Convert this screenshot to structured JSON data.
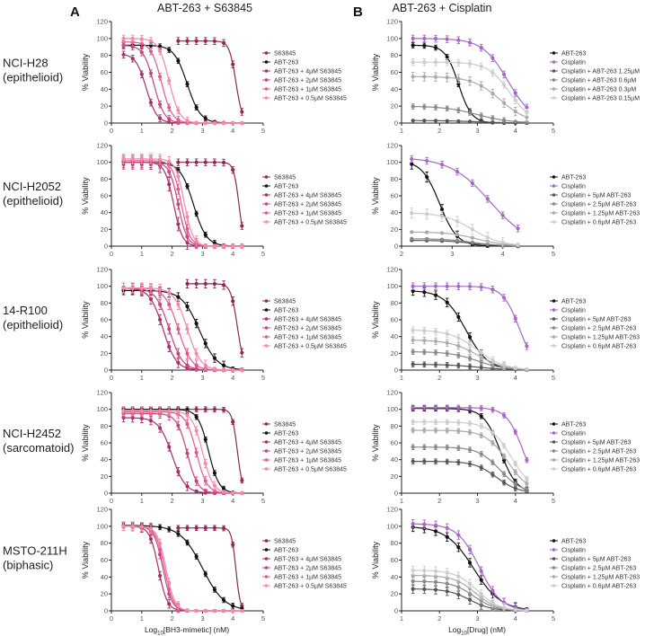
{
  "colors": {
    "S63845": "#8b2a55",
    "ABT-263": "#111111",
    "4uM": "#a3306a",
    "2uM": "#c44580",
    "1uM": "#e05a90",
    "05uM": "#f28aa8",
    "Cisplatin": "#a668c4",
    "g1": "#555555",
    "g2": "#888888",
    "g3": "#aaaaaa",
    "g4": "#cccccc"
  },
  "headers": {
    "panel_a": "A",
    "panel_b": "B",
    "title_a": "ABT-263 + S63845",
    "title_b": "ABT-263 + Cisplatin"
  },
  "rows": [
    {
      "name": "NCI-H28",
      "type": "(epithelioid)"
    },
    {
      "name": "NCI-H2052",
      "type": "(epithelioid)"
    },
    {
      "name": "14-R100",
      "type": "(epithelioid)"
    },
    {
      "name": "NCI-H2452",
      "type": "(sarcomatoid)"
    },
    {
      "name": "MSTO-211H",
      "type": "(biphasic)"
    }
  ],
  "xlabel_a": {
    "prefix": "Log",
    "sub": "10",
    "suffix": "[BH3-mimetic] (nM)"
  },
  "xlabel_b": {
    "prefix": "Log",
    "sub": "10",
    "suffix": "[Drug] (nM)"
  },
  "chart_data": [
    {
      "type": "line",
      "panel": "A",
      "row": 0,
      "ylabel": "% Viability",
      "xlim": [
        0,
        5
      ],
      "ylim": [
        0,
        120
      ],
      "xticks": [
        0,
        1,
        2,
        3,
        4,
        5
      ],
      "yticks": [
        0,
        20,
        40,
        60,
        80,
        100,
        120
      ],
      "legend": "right",
      "series": [
        {
          "name": "S63845",
          "color": "S63845",
          "top": 97,
          "log_ic50": 4.1,
          "hill": 4,
          "xmin": 2.2,
          "xmax": 4.3,
          "err": 4
        },
        {
          "name": "ABT-263",
          "color": "ABT-263",
          "top": 92,
          "log_ic50": 2.5,
          "hill": 2,
          "xmin": 0.4,
          "xmax": 4.3,
          "err": 3
        },
        {
          "name": "ABT-263 + 4µM S63845",
          "color": "4uM",
          "top": 82,
          "log_ic50": 1.15,
          "hill": 2.5,
          "xmin": 0.4,
          "xmax": 4.3,
          "err": 4
        },
        {
          "name": "ABT-263 + 2µM S63845",
          "color": "2uM",
          "top": 92,
          "log_ic50": 1.4,
          "hill": 2.5,
          "xmin": 0.4,
          "xmax": 4.3,
          "err": 4
        },
        {
          "name": "ABT-263 + 1µM S63845",
          "color": "1uM",
          "top": 96,
          "log_ic50": 1.65,
          "hill": 2.5,
          "xmin": 0.4,
          "xmax": 4.3,
          "err": 4
        },
        {
          "name": "ABT-263 + 0.5µM S63845",
          "color": "05uM",
          "top": 100,
          "log_ic50": 1.9,
          "hill": 2.5,
          "xmin": 0.4,
          "xmax": 4.3,
          "err": 4
        }
      ]
    },
    {
      "type": "line",
      "panel": "B",
      "row": 0,
      "ylabel": "% Viability",
      "xlim": [
        1,
        5
      ],
      "ylim": [
        0,
        120
      ],
      "xticks": [
        1,
        2,
        3,
        4,
        5
      ],
      "yticks": [
        0,
        20,
        40,
        60,
        80,
        100,
        120
      ],
      "legend": "right",
      "series": [
        {
          "name": "ABT-263",
          "color": "ABT-263",
          "top": 92,
          "log_ic50": 2.5,
          "hill": 2.5,
          "xmin": 1.3,
          "xmax": 4.3,
          "err": 3
        },
        {
          "name": "Cisplatin",
          "color": "Cisplatin",
          "top": 100,
          "log_ic50": 3.8,
          "hill": 1.3,
          "xmin": 1.3,
          "xmax": 4.3,
          "err": 4
        },
        {
          "name": "Cisplatin + ABT-263 1.25µM",
          "color": "g1",
          "top": 3,
          "log_ic50": 3,
          "hill": 1,
          "xmin": 1.3,
          "xmax": 4.3,
          "err": 1
        },
        {
          "name": "Cisplatin + ABT-263 0.6µM",
          "color": "g2",
          "top": 20,
          "log_ic50": 3,
          "hill": 1,
          "xmin": 1.3,
          "xmax": 4.3,
          "err": 3
        },
        {
          "name": "Cisplatin + ABT-263 0.3µM",
          "color": "g3",
          "top": 55,
          "log_ic50": 3.6,
          "hill": 1.2,
          "xmin": 1.3,
          "xmax": 4.3,
          "err": 5
        },
        {
          "name": "Cisplatin + ABT-263 0.15µM",
          "color": "g4",
          "top": 72,
          "log_ic50": 3.85,
          "hill": 1.5,
          "xmin": 1.3,
          "xmax": 4.3,
          "err": 4
        }
      ]
    },
    {
      "type": "line",
      "panel": "A",
      "row": 1,
      "ylabel": "% Viability",
      "xlim": [
        0,
        5
      ],
      "ylim": [
        0,
        120
      ],
      "xticks": [
        0,
        1,
        2,
        3,
        4,
        5
      ],
      "yticks": [
        0,
        20,
        40,
        60,
        80,
        100,
        120
      ],
      "legend": "right",
      "series": [
        {
          "name": "S63845",
          "color": "S63845",
          "top": 100,
          "log_ic50": 4.2,
          "hill": 5,
          "xmin": 2.2,
          "xmax": 4.3,
          "err": 4
        },
        {
          "name": "ABT-263",
          "color": "ABT-263",
          "top": 100,
          "log_ic50": 2.7,
          "hill": 2,
          "xmin": 0.4,
          "xmax": 4.3,
          "err": 3
        },
        {
          "name": "ABT-263 + 4µM S63845",
          "color": "4uM",
          "top": 100,
          "log_ic50": 2.05,
          "hill": 3,
          "xmin": 0.4,
          "xmax": 4.3,
          "err": 8
        },
        {
          "name": "ABT-263 + 2µM S63845",
          "color": "2uM",
          "top": 100,
          "log_ic50": 2.2,
          "hill": 3,
          "xmin": 0.4,
          "xmax": 4.3,
          "err": 6
        },
        {
          "name": "ABT-263 + 1µM S63845",
          "color": "1uM",
          "top": 102,
          "log_ic50": 2.3,
          "hill": 3,
          "xmin": 0.4,
          "xmax": 4.3,
          "err": 6
        },
        {
          "name": "ABT-263 + 0.5µM S63845",
          "color": "05uM",
          "top": 104,
          "log_ic50": 2.4,
          "hill": 3,
          "xmin": 0.4,
          "xmax": 4.3,
          "err": 6
        }
      ]
    },
    {
      "type": "line",
      "panel": "B",
      "row": 1,
      "ylabel": "% Viability",
      "xlim": [
        2,
        5
      ],
      "ylim": [
        0,
        120
      ],
      "xticks": [
        2,
        3,
        4,
        5
      ],
      "yticks": [
        0,
        20,
        40,
        60,
        80,
        100,
        120
      ],
      "legend": "right",
      "series": [
        {
          "name": "ABT-263",
          "color": "ABT-263",
          "top": 102,
          "log_ic50": 2.75,
          "hill": 2.5,
          "xmin": 2.2,
          "xmax": 4.3,
          "err": 6
        },
        {
          "name": "Cisplatin",
          "color": "Cisplatin",
          "top": 106,
          "log_ic50": 3.75,
          "hill": 1.1,
          "xmin": 2.2,
          "xmax": 4.3,
          "err": 4
        },
        {
          "name": "Cisplatin + 5µM ABT-263",
          "color": "g1",
          "top": 7,
          "log_ic50": 3.4,
          "hill": 1.5,
          "xmin": 2.2,
          "xmax": 4.3,
          "err": 1
        },
        {
          "name": "Cisplatin + 2.5µM ABT-263",
          "color": "g2",
          "top": 9,
          "log_ic50": 3.4,
          "hill": 1.5,
          "xmin": 2.2,
          "xmax": 4.3,
          "err": 1
        },
        {
          "name": "Cisplatin + 1.25µM ABT-263",
          "color": "g3",
          "top": 17,
          "log_ic50": 3.5,
          "hill": 1.5,
          "xmin": 2.2,
          "xmax": 4.3,
          "err": 1
        },
        {
          "name": "Cisplatin + 0.6µM ABT-263",
          "color": "g4",
          "top": 40,
          "log_ic50": 3.4,
          "hill": 1.5,
          "xmin": 2.2,
          "xmax": 4.3,
          "err": 6
        }
      ]
    },
    {
      "type": "line",
      "panel": "A",
      "row": 2,
      "ylabel": "% Viability",
      "xlim": [
        0,
        5
      ],
      "ylim": [
        0,
        120
      ],
      "xticks": [
        0,
        1,
        2,
        3,
        4,
        5
      ],
      "yticks": [
        0,
        20,
        40,
        60,
        80,
        100,
        120
      ],
      "legend": "right",
      "series": [
        {
          "name": "S63845",
          "color": "S63845",
          "top": 103,
          "log_ic50": 4.15,
          "hill": 4,
          "xmin": 2.5,
          "xmax": 4.3,
          "err": 5
        },
        {
          "name": "ABT-263",
          "color": "ABT-263",
          "top": 95,
          "log_ic50": 2.9,
          "hill": 1.5,
          "xmin": 0.4,
          "xmax": 4.3,
          "err": 5
        },
        {
          "name": "ABT-263 + 4µM S63845",
          "color": "4uM",
          "top": 98,
          "log_ic50": 1.7,
          "hill": 2,
          "xmin": 0.4,
          "xmax": 4.3,
          "err": 6
        },
        {
          "name": "ABT-263 + 2µM S63845",
          "color": "2uM",
          "top": 98,
          "log_ic50": 1.9,
          "hill": 2,
          "xmin": 0.4,
          "xmax": 4.3,
          "err": 6
        },
        {
          "name": "ABT-263 + 1µM S63845",
          "color": "1uM",
          "top": 98,
          "log_ic50": 2.2,
          "hill": 2,
          "xmin": 0.4,
          "xmax": 4.3,
          "err": 6
        },
        {
          "name": "ABT-263 + 0.5µM S63845",
          "color": "05uM",
          "top": 98,
          "log_ic50": 2.5,
          "hill": 2,
          "xmin": 0.4,
          "xmax": 4.3,
          "err": 6
        }
      ]
    },
    {
      "type": "line",
      "panel": "B",
      "row": 2,
      "ylabel": "% Viability",
      "xlim": [
        1,
        5
      ],
      "ylim": [
        0,
        120
      ],
      "xticks": [
        1,
        2,
        3,
        4,
        5
      ],
      "yticks": [
        0,
        20,
        40,
        60,
        80,
        100,
        120
      ],
      "legend": "right",
      "series": [
        {
          "name": "ABT-263",
          "color": "ABT-263",
          "top": 95,
          "log_ic50": 2.7,
          "hill": 1.5,
          "xmin": 1.3,
          "xmax": 4.3,
          "err": 5
        },
        {
          "name": "Cisplatin",
          "color": "Cisplatin",
          "top": 100,
          "log_ic50": 4.1,
          "hill": 2,
          "xmin": 1.3,
          "xmax": 4.3,
          "err": 4
        },
        {
          "name": "Cisplatin + 5µM ABT-263",
          "color": "g1",
          "top": 7,
          "log_ic50": 3,
          "hill": 1,
          "xmin": 1.3,
          "xmax": 4.3,
          "err": 3
        },
        {
          "name": "Cisplatin + 2.5µM ABT-263",
          "color": "g2",
          "top": 22,
          "log_ic50": 3,
          "hill": 1.2,
          "xmin": 1.3,
          "xmax": 4.3,
          "err": 3
        },
        {
          "name": "Cisplatin + 1.25µM ABT-263",
          "color": "g3",
          "top": 36,
          "log_ic50": 3,
          "hill": 1.2,
          "xmin": 1.3,
          "xmax": 4.3,
          "err": 4
        },
        {
          "name": "Cisplatin + 0.6µM ABT-263",
          "color": "g4",
          "top": 48,
          "log_ic50": 3,
          "hill": 1.2,
          "xmin": 1.3,
          "xmax": 4.3,
          "err": 4
        }
      ]
    },
    {
      "type": "line",
      "panel": "A",
      "row": 3,
      "ylabel": "% Viability",
      "xlim": [
        0,
        5
      ],
      "ylim": [
        0,
        120
      ],
      "xticks": [
        0,
        1,
        2,
        3,
        4,
        5
      ],
      "yticks": [
        0,
        20,
        40,
        60,
        80,
        100,
        120
      ],
      "legend": "right",
      "series": [
        {
          "name": "S63845",
          "color": "S63845",
          "top": 100,
          "log_ic50": 4.15,
          "hill": 5,
          "xmin": 0.4,
          "xmax": 4.3,
          "err": 3
        },
        {
          "name": "ABT-263",
          "color": "ABT-263",
          "top": 100,
          "log_ic50": 3.2,
          "hill": 2.5,
          "xmin": 0.4,
          "xmax": 4.3,
          "err": 3
        },
        {
          "name": "ABT-263 + 4µM S63845",
          "color": "4uM",
          "top": 90,
          "log_ic50": 2.0,
          "hill": 2,
          "xmin": 0.4,
          "xmax": 4.3,
          "err": 5
        },
        {
          "name": "ABT-263 + 2µM S63845",
          "color": "2uM",
          "top": 95,
          "log_ic50": 2.5,
          "hill": 2.5,
          "xmin": 0.4,
          "xmax": 4.3,
          "err": 5
        },
        {
          "name": "ABT-263 + 1µM S63845",
          "color": "1uM",
          "top": 97,
          "log_ic50": 2.8,
          "hill": 2.5,
          "xmin": 0.4,
          "xmax": 4.3,
          "err": 5
        },
        {
          "name": "ABT-263 + 0.5µM S63845",
          "color": "05uM",
          "top": 98,
          "log_ic50": 3.0,
          "hill": 2.5,
          "xmin": 0.4,
          "xmax": 4.3,
          "err": 5
        }
      ]
    },
    {
      "type": "line",
      "panel": "B",
      "row": 3,
      "ylabel": "% Viability",
      "xlim": [
        1,
        5
      ],
      "ylim": [
        0,
        120
      ],
      "xticks": [
        1,
        2,
        3,
        4,
        5
      ],
      "yticks": [
        0,
        20,
        40,
        60,
        80,
        100,
        120
      ],
      "legend": "right",
      "series": [
        {
          "name": "ABT-263",
          "color": "ABT-263",
          "top": 101,
          "log_ic50": 3.6,
          "hill": 2,
          "xmin": 1.3,
          "xmax": 4.3,
          "err": 3
        },
        {
          "name": "Cisplatin",
          "color": "Cisplatin",
          "top": 102,
          "log_ic50": 4.2,
          "hill": 2,
          "xmin": 1.3,
          "xmax": 4.3,
          "err": 3
        },
        {
          "name": "Cisplatin + 5µM ABT-263",
          "color": "g1",
          "top": 38,
          "log_ic50": 3.5,
          "hill": 1.5,
          "xmin": 1.3,
          "xmax": 4.3,
          "err": 3
        },
        {
          "name": "Cisplatin + 2.5µM ABT-263",
          "color": "g2",
          "top": 55,
          "log_ic50": 3.6,
          "hill": 1.5,
          "xmin": 1.3,
          "xmax": 4.3,
          "err": 3
        },
        {
          "name": "Cisplatin + 1.25µM ABT-263",
          "color": "g3",
          "top": 75,
          "log_ic50": 3.8,
          "hill": 1.5,
          "xmin": 1.3,
          "xmax": 4.3,
          "err": 3
        },
        {
          "name": "Cisplatin + 0.6µM ABT-263",
          "color": "g4",
          "top": 85,
          "log_ic50": 3.9,
          "hill": 1.5,
          "xmin": 1.3,
          "xmax": 4.3,
          "err": 3
        }
      ]
    },
    {
      "type": "line",
      "panel": "A",
      "row": 4,
      "ylabel": "% Viability",
      "xlim": [
        0,
        5
      ],
      "ylim": [
        0,
        120
      ],
      "xticks": [
        0,
        1,
        2,
        3,
        4,
        5
      ],
      "yticks": [
        0,
        20,
        40,
        60,
        80,
        100,
        120
      ],
      "legend": "right",
      "series": [
        {
          "name": "S63845",
          "color": "S63845",
          "top": 98,
          "log_ic50": 4.1,
          "hill": 6,
          "xmin": 2.2,
          "xmax": 4.3,
          "err": 3
        },
        {
          "name": "ABT-263",
          "color": "ABT-263",
          "top": 101,
          "log_ic50": 3.0,
          "hill": 1.2,
          "xmin": 0.4,
          "xmax": 4.3,
          "err": 3
        },
        {
          "name": "ABT-263 + 4µM S63845",
          "color": "4uM",
          "top": 100,
          "log_ic50": 1.55,
          "hill": 3,
          "xmin": 0.4,
          "xmax": 4.3,
          "err": 5
        },
        {
          "name": "ABT-263 + 2µM S63845",
          "color": "2uM",
          "top": 100,
          "log_ic50": 1.7,
          "hill": 3,
          "xmin": 0.4,
          "xmax": 4.3,
          "err": 5
        },
        {
          "name": "ABT-263 + 1µM S63845",
          "color": "1uM",
          "top": 100,
          "log_ic50": 1.75,
          "hill": 3,
          "xmin": 0.4,
          "xmax": 4.3,
          "err": 5
        },
        {
          "name": "ABT-263 + 0.5µM S63845",
          "color": "05uM",
          "top": 100,
          "log_ic50": 1.8,
          "hill": 3,
          "xmin": 0.4,
          "xmax": 4.3,
          "err": 5
        }
      ]
    },
    {
      "type": "line",
      "panel": "B",
      "row": 4,
      "ylabel": "% Viability",
      "xlim": [
        1,
        5
      ],
      "ylim": [
        0,
        120
      ],
      "xticks": [
        1,
        2,
        3,
        4,
        5
      ],
      "yticks": [
        0,
        20,
        40,
        60,
        80,
        100,
        120
      ],
      "legend": "right",
      "series": [
        {
          "name": "ABT-263",
          "color": "ABT-263",
          "top": 100,
          "log_ic50": 2.9,
          "hill": 1.2,
          "xmin": 1.3,
          "xmax": 4.3,
          "err": 5
        },
        {
          "name": "Cisplatin",
          "color": "Cisplatin",
          "top": 103,
          "log_ic50": 3.05,
          "hill": 1.5,
          "xmin": 1.3,
          "xmax": 4.3,
          "err": 5
        },
        {
          "name": "Cisplatin + 5µM ABT-263",
          "color": "g1",
          "top": 26,
          "log_ic50": 2.8,
          "hill": 1.5,
          "xmin": 1.3,
          "xmax": 4.3,
          "err": 5
        },
        {
          "name": "Cisplatin + 2.5µM ABT-263",
          "color": "g2",
          "top": 35,
          "log_ic50": 2.9,
          "hill": 1.5,
          "xmin": 1.3,
          "xmax": 4.3,
          "err": 5
        },
        {
          "name": "Cisplatin + 1.25µM ABT-263",
          "color": "g3",
          "top": 42,
          "log_ic50": 2.95,
          "hill": 1.5,
          "xmin": 1.3,
          "xmax": 4.3,
          "err": 5
        },
        {
          "name": "Cisplatin + 0.6µM ABT-263",
          "color": "g4",
          "top": 48,
          "log_ic50": 3.0,
          "hill": 1.5,
          "xmin": 1.3,
          "xmax": 4.3,
          "err": 5
        }
      ]
    }
  ]
}
